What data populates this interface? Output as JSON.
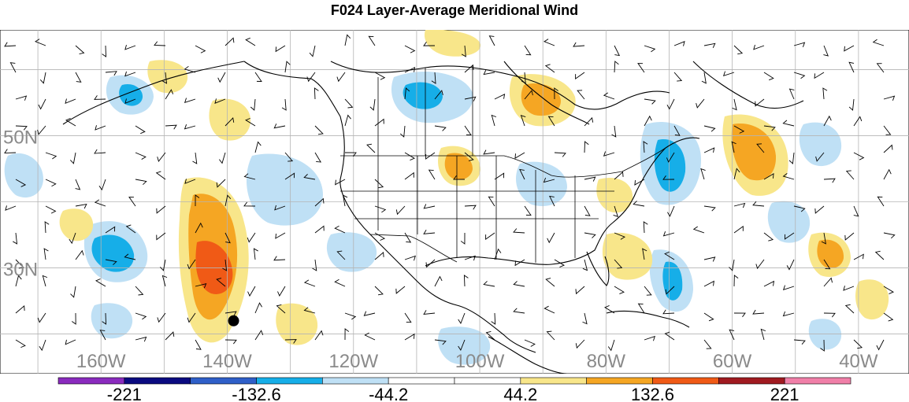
{
  "title": "F024 Layer-Average Meridional Wind",
  "map": {
    "lat_labels": [
      {
        "lat": 50,
        "text": "50N"
      },
      {
        "lat": 30,
        "text": "30N"
      }
    ],
    "lon_labels": [
      {
        "lon": -160,
        "text": "160W"
      },
      {
        "lon": -140,
        "text": "140W"
      },
      {
        "lon": -120,
        "text": "120W"
      },
      {
        "lon": -100,
        "text": "100W"
      },
      {
        "lon": -80,
        "text": "80W"
      },
      {
        "lon": -60,
        "text": "60W"
      },
      {
        "lon": -40,
        "text": "40W"
      }
    ],
    "lon_range": [
      -176,
      -32
    ],
    "lat_range": [
      14,
      66
    ],
    "grid_spacing_deg": 10,
    "label_color": "#8a8a8a",
    "marker": {
      "lon": -139,
      "lat": 22,
      "color": "#000000"
    }
  },
  "colorbar": {
    "colors": [
      "#8a2bbe",
      "#0a0a80",
      "#2f5fc8",
      "#16aee8",
      "#bfe0f5",
      "#ffffff",
      "#ffffff",
      "#f8e68a",
      "#f5a623",
      "#f05a16",
      "#a01a20",
      "#f07fa8"
    ],
    "tick_labels": [
      {
        "boundary": 1,
        "text": "-221"
      },
      {
        "boundary": 3,
        "text": "-132.6"
      },
      {
        "boundary": 5,
        "text": "-44.2"
      },
      {
        "boundary": 7,
        "text": "44.2"
      },
      {
        "boundary": 9,
        "text": "132.6"
      },
      {
        "boundary": 11,
        "text": "221"
      }
    ]
  }
}
